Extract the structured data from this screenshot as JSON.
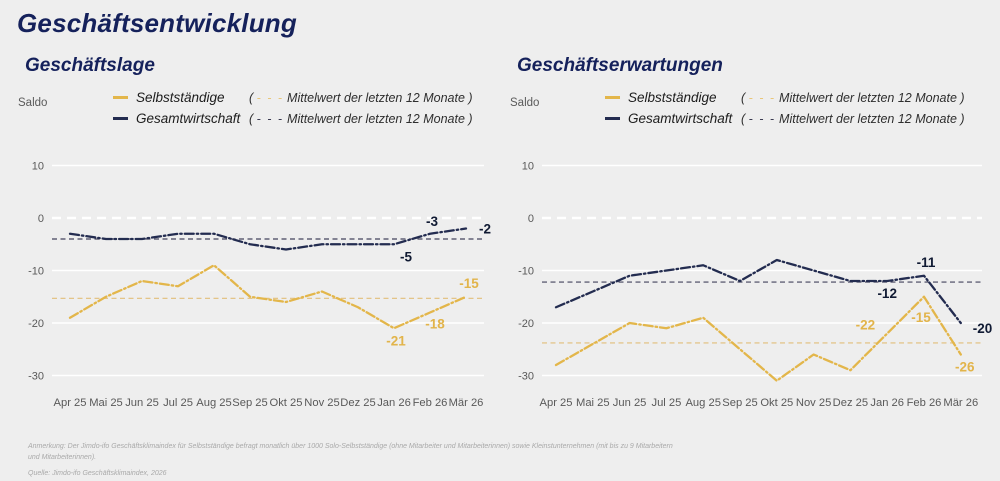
{
  "page": {
    "title": "Geschäftsentwicklung",
    "background": "#EEEEEE"
  },
  "axis_unit_label": "Saldo",
  "colors": {
    "title_navy": "#15215B",
    "series_navy": "#232C50",
    "series_orange": "#E3B64A",
    "axis_text": "#595959",
    "gridline": "#FFFFFF",
    "navy_label": "#101A33",
    "orange_label": "#E2B44A"
  },
  "legend": {
    "rows": [
      {
        "label": "Selbstständige",
        "open": "( ",
        "dashes": "- - -",
        "note": " Mittelwert der letzten 12 Monate )"
      },
      {
        "label": "Gesamtwirtschaft",
        "open": "( ",
        "dashes": "- - -",
        "note": " Mittelwert der letzten 12 Monate )"
      }
    ]
  },
  "chart_data": [
    {
      "type": "line",
      "title": "Geschäftslage",
      "categories": [
        "Apr 25",
        "Mai 25",
        "Jun 25",
        "Jul 25",
        "Aug 25",
        "Sep 25",
        "Okt 25",
        "Nov 25",
        "Dez 25",
        "Jan 26",
        "Feb 26",
        "Mär 26"
      ],
      "series": [
        {
          "name": "Selbstständige",
          "color": "#E3B64A",
          "values": [
            -19,
            -15,
            -12,
            -13,
            -9,
            -15,
            -16,
            -14,
            -17,
            -21,
            -18,
            -15
          ],
          "mean_12m": -15.3
        },
        {
          "name": "Gesamtwirtschaft",
          "color": "#232C50",
          "values": [
            -3,
            -4,
            -4,
            -3,
            -3,
            -5,
            -6,
            -5,
            -5,
            -5,
            -3,
            -2
          ],
          "mean_12m": -4.0
        }
      ],
      "ylim": [
        -30,
        10
      ],
      "yticks": [
        10,
        0,
        -10,
        -20,
        -30
      ],
      "grid": "horizontal-white",
      "legend_position": "top",
      "point_labels": [
        {
          "series": "Gesamtwirtschaft",
          "category": "Jan 26",
          "text": "-5"
        },
        {
          "series": "Gesamtwirtschaft",
          "category": "Feb 26",
          "text": "-3"
        },
        {
          "series": "Gesamtwirtschaft",
          "category": "Mär 26",
          "text": "-2"
        },
        {
          "series": "Selbstständige",
          "category": "Jan 26",
          "text": "-21"
        },
        {
          "series": "Selbstständige",
          "category": "Feb 26",
          "text": "-18"
        },
        {
          "series": "Selbstständige",
          "category": "Mär 26",
          "text": "-15"
        }
      ]
    },
    {
      "type": "line",
      "title": "Geschäftserwartungen",
      "categories": [
        "Apr 25",
        "Mai 25",
        "Jun 25",
        "Jul 25",
        "Aug 25",
        "Sep 25",
        "Okt 25",
        "Nov 25",
        "Dez 25",
        "Jan 26",
        "Feb 26",
        "Mär 26"
      ],
      "series": [
        {
          "name": "Selbstständige",
          "color": "#E3B64A",
          "values": [
            -28,
            -24,
            -20,
            -21,
            -19,
            -25,
            -31,
            -26,
            -29,
            -22,
            -15,
            -26
          ],
          "mean_12m": -23.8
        },
        {
          "name": "Gesamtwirtschaft",
          "color": "#232C50",
          "values": [
            -17,
            -14,
            -11,
            -10,
            -9,
            -12,
            -8,
            -10,
            -12,
            -12,
            -11,
            -20
          ],
          "mean_12m": -12.2
        }
      ],
      "ylim": [
        -30,
        10
      ],
      "yticks": [
        10,
        0,
        -10,
        -20,
        -30
      ],
      "grid": "horizontal-white",
      "legend_position": "top",
      "point_labels": [
        {
          "series": "Gesamtwirtschaft",
          "category": "Jan 26",
          "text": "-12"
        },
        {
          "series": "Gesamtwirtschaft",
          "category": "Feb 26",
          "text": "-11"
        },
        {
          "series": "Gesamtwirtschaft",
          "category": "Mär 26",
          "text": "-20"
        },
        {
          "series": "Selbstständige",
          "category": "Jan 26",
          "text": "-22"
        },
        {
          "series": "Selbstständige",
          "category": "Feb 26",
          "text": "-15"
        },
        {
          "series": "Selbstständige",
          "category": "Mär 26",
          "text": "-26"
        }
      ]
    }
  ],
  "footnote": {
    "note": "Anmerkung: Der Jimdo-ifo Geschäftsklimaindex für Selbstständige befragt monatlich über 1000 Solo-Selbstständige (ohne Mitarbeiter und Mitarbeiterinnen) sowie Kleinstunternehmen (mit bis zu 9 Mitarbeitern und Mitarbeiterinnen).",
    "source": "Quelle: Jimdo-ifo Geschäftsklimaindex, 2026"
  }
}
